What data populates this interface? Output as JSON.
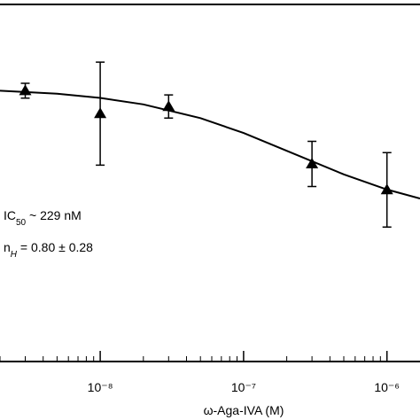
{
  "chart_data": {
    "type": "scatter",
    "x_label": "ω-Aga-IVA (M)",
    "log_x": true,
    "xlim": [
      2e-09,
      1.7e-06
    ],
    "ylim": [
      0,
      1.2
    ],
    "xticks": [
      {
        "value": 1e-08,
        "label": "10⁻⁸"
      },
      {
        "value": 1e-07,
        "label": "10⁻⁷"
      },
      {
        "value": 1e-06,
        "label": "10⁻⁶"
      }
    ],
    "xminorticks": [
      2e-09,
      3e-09,
      4e-09,
      5e-09,
      6e-09,
      7e-09,
      8e-09,
      9e-09,
      2e-08,
      3e-08,
      4e-08,
      5e-08,
      6e-08,
      7e-08,
      8e-08,
      9e-08,
      2e-07,
      3e-07,
      4e-07,
      5e-07,
      6e-07,
      7e-07,
      8e-07,
      9e-07
    ],
    "color": "#000000",
    "points": {
      "x": [
        3e-09,
        1e-08,
        3e-08,
        3e-07,
        1e-06
      ],
      "values": [
        0.91,
        0.833,
        0.857,
        0.664,
        0.577
      ],
      "errors": [
        0.025,
        0.173,
        0.039,
        0.076,
        0.125
      ]
    },
    "curve": {
      "x": [
        2e-09,
        5e-09,
        1e-08,
        2e-08,
        5e-08,
        1e-07,
        2e-07,
        5e-07,
        1e-06,
        1.7e-06
      ],
      "values": [
        0.91,
        0.9,
        0.886,
        0.864,
        0.818,
        0.768,
        0.708,
        0.629,
        0.578,
        0.548
      ]
    },
    "annotations": {
      "ic50": {
        "main": "IC",
        "sub": "50",
        "rest": " ~ 229 nM"
      },
      "nh": {
        "main": "n",
        "sub": "H",
        "rest": " = 0.80 ± 0.28"
      }
    }
  }
}
